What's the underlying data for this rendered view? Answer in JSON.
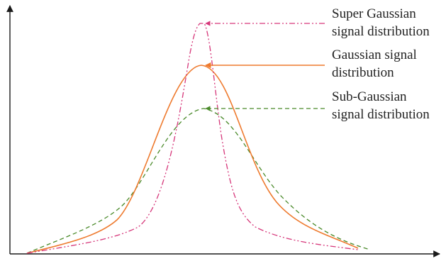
{
  "labels": {
    "super_gaussian_line1": "Super Gaussian",
    "super_gaussian_line2": "signal distribution",
    "gaussian_line1": "Gaussian signal",
    "gaussian_line2": "distribution",
    "sub_gaussian_line1": "Sub-Gaussian",
    "sub_gaussian_line2": "signal distribution"
  },
  "curves": [
    {
      "name": "super-gaussian",
      "style": "dash-dot-dot",
      "color": "#d6377a"
    },
    {
      "name": "gaussian",
      "style": "solid",
      "color": "#ee7a2e"
    },
    {
      "name": "sub-gaussian",
      "style": "dashed",
      "color": "#4a8a2a"
    }
  ],
  "colors": {
    "axis": "#1a1a1a",
    "text": "#222222"
  }
}
